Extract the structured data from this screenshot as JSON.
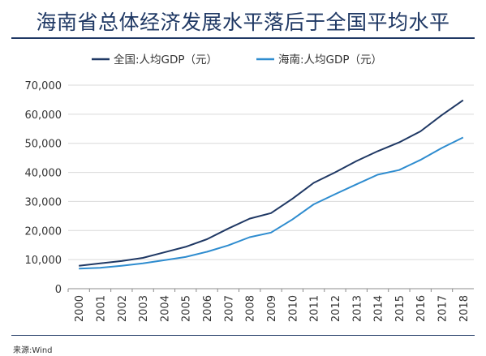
{
  "title": "海南省总体经济发展水平落后于全国平均水平",
  "source": "来源:Wind",
  "chart_data": {
    "type": "line",
    "x": [
      "2000",
      "2001",
      "2002",
      "2003",
      "2004",
      "2005",
      "2006",
      "2007",
      "2008",
      "2009",
      "2010",
      "2011",
      "2012",
      "2013",
      "2014",
      "2015",
      "2016",
      "2017",
      "2018"
    ],
    "series": [
      {
        "name": "全国:人均GDP（元）",
        "color": "#1f3864",
        "values": [
          7900,
          8700,
          9500,
          10600,
          12500,
          14400,
          17000,
          20700,
          24100,
          26000,
          30900,
          36400,
          40000,
          43900,
          47300,
          50300,
          54100,
          59700,
          64800
        ]
      },
      {
        "name": "海南:人均GDP（元）",
        "color": "#2e8ccf",
        "values": [
          6900,
          7200,
          7900,
          8700,
          9800,
          10900,
          12700,
          14900,
          17700,
          19300,
          23800,
          29000,
          32500,
          35900,
          39200,
          40800,
          44300,
          48400,
          52000
        ]
      }
    ],
    "y_ticks": [
      "0",
      "10,000",
      "20,000",
      "30,000",
      "40,000",
      "50,000",
      "60,000",
      "70,000"
    ],
    "ylim": [
      0,
      70000
    ],
    "grid": true,
    "legend_position": "top"
  }
}
